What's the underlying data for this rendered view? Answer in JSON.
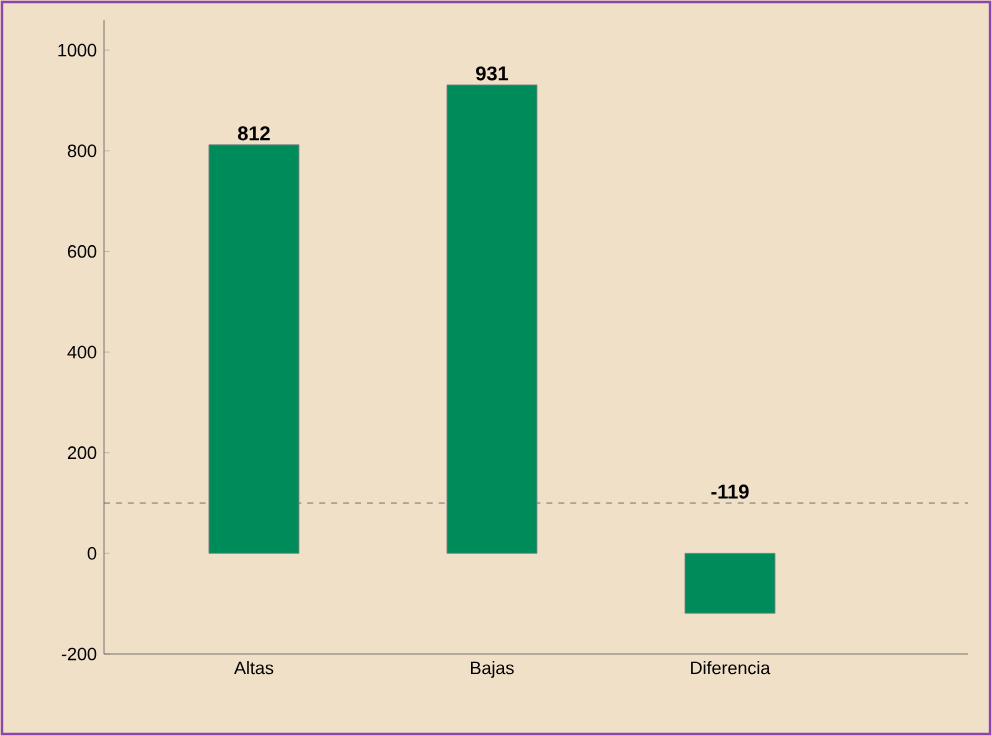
{
  "chart_data": {
    "type": "bar",
    "categories": [
      "Altas",
      "Bajas",
      "Diferencia"
    ],
    "values": [
      812,
      931,
      -119
    ],
    "color": "#008c5a",
    "data_labels": true,
    "ylim": [
      -200,
      1060
    ],
    "yticks": [
      -200,
      0,
      200,
      400,
      600,
      800,
      1000
    ],
    "ref_lines": [
      {
        "axis": "y",
        "value": 100,
        "line_style": "dashed",
        "color": "#555555"
      }
    ]
  }
}
